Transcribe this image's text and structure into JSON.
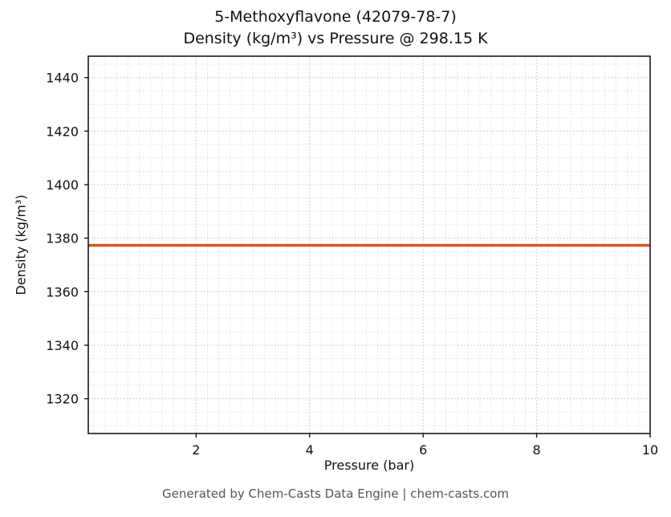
{
  "chart_data": {
    "type": "line",
    "title": "5-Methoxyflavone (42079-78-7)",
    "subtitle": "Density (kg/m³) vs Pressure @ 298.15 K",
    "xlabel": "Pressure (bar)",
    "ylabel": "Density (kg/m³)",
    "xlim": [
      0.1,
      10
    ],
    "ylim": [
      1307,
      1448
    ],
    "x_ticks": [
      2,
      4,
      6,
      8,
      10
    ],
    "y_ticks": [
      1320,
      1340,
      1360,
      1380,
      1400,
      1420,
      1440
    ],
    "x_minor_step": 0.2,
    "y_minor_step": 5,
    "grid": true,
    "legend": "none",
    "series": [
      {
        "name": "density",
        "color": "#d9542c",
        "line_width": 3.5,
        "x": [
          0.1,
          2,
          4,
          6,
          8,
          10
        ],
        "y": [
          1377.3,
          1377.3,
          1377.3,
          1377.3,
          1377.3,
          1377.3
        ]
      }
    ]
  },
  "footer": "Generated by Chem-Casts Data Engine | chem-casts.com"
}
